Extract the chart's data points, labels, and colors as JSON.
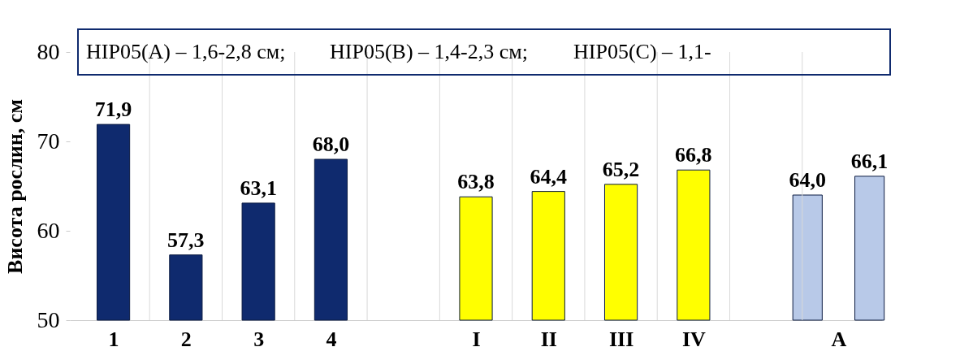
{
  "chart_data": {
    "type": "bar",
    "ylabel": "Висота рослин, см",
    "categories": [
      "1",
      "2",
      "3",
      "4",
      null,
      "I",
      "II",
      "III",
      "IV",
      null,
      "A"
    ],
    "series": [
      {
        "colors": [
          "#0f2a6e",
          "#0f2a6e",
          "#0f2a6e",
          "#0f2a6e",
          "#0f2a6e",
          "#ffff00",
          "#ffff00",
          "#ffff00",
          "#ffff00",
          "#ffff00",
          "#b8c9e8"
        ],
        "values": [
          71.9,
          57.3,
          63.1,
          68.0,
          null,
          63.8,
          64.4,
          65.2,
          66.8,
          null,
          64.0
        ],
        "value_labels": [
          "71,9",
          "57,3",
          "63,1",
          "68,0",
          null,
          "63,8",
          "64,4",
          "65,2",
          "66,8",
          null,
          "64,0"
        ]
      },
      {
        "color": "#b8c9e8",
        "values": [
          null,
          null,
          null,
          null,
          null,
          null,
          null,
          null,
          null,
          null,
          66.1
        ],
        "value_labels": [
          null,
          null,
          null,
          null,
          null,
          null,
          null,
          null,
          null,
          null,
          "66,1"
        ]
      }
    ],
    "ylim": [
      50,
      80
    ],
    "yticks": [
      50,
      60,
      70,
      80
    ],
    "grid": "x",
    "annotations": [
      "НІР05(A) – 1,6-2,8 см;",
      "НІР05(B) – 1,4-2,3 см;",
      "НІР05(C) – 1,1-"
    ]
  }
}
